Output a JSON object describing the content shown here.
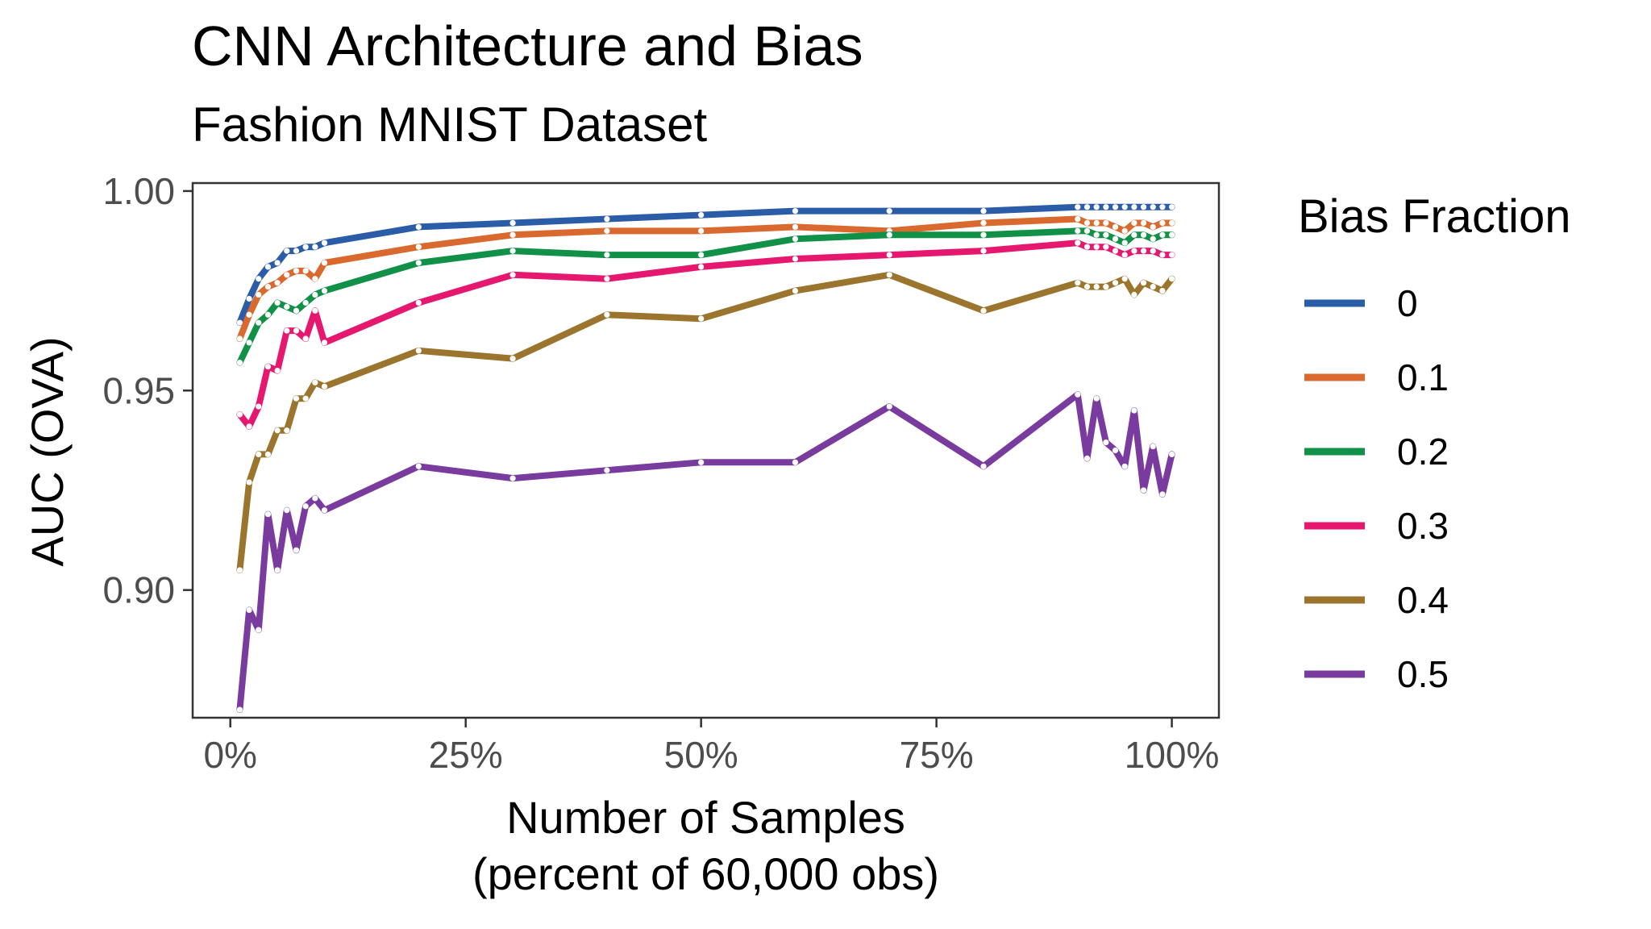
{
  "chart_data": {
    "type": "line",
    "title": "CNN Architecture and Bias",
    "subtitle": "Fashion MNIST Dataset",
    "xlabel": [
      "Number of Samples",
      "(percent of 60,000 obs)"
    ],
    "ylabel": "AUC (OVA)",
    "xlim": [
      -0.04,
      1.05
    ],
    "ylim": [
      0.868,
      1.002
    ],
    "x_ticks": [
      0,
      0.25,
      0.5,
      0.75,
      1.0
    ],
    "x_tick_labels": [
      "0%",
      "25%",
      "50%",
      "75%",
      "100%"
    ],
    "y_ticks": [
      0.9,
      0.95,
      1.0
    ],
    "y_tick_labels": [
      "0.90",
      "0.95",
      "1.00"
    ],
    "legend_title": "Bias Fraction",
    "legend_position": "right",
    "x": [
      0.01,
      0.02,
      0.03,
      0.04,
      0.05,
      0.06,
      0.07,
      0.08,
      0.09,
      0.1,
      0.2,
      0.3,
      0.4,
      0.5,
      0.6,
      0.7,
      0.8,
      0.9,
      0.91,
      0.92,
      0.93,
      0.94,
      0.95,
      0.96,
      0.97,
      0.98,
      0.99,
      1.0
    ],
    "series": [
      {
        "name": "0",
        "color": "#2a5ca8",
        "values": [
          0.967,
          0.973,
          0.978,
          0.981,
          0.982,
          0.985,
          0.985,
          0.986,
          0.986,
          0.987,
          0.991,
          0.992,
          0.993,
          0.994,
          0.995,
          0.995,
          0.995,
          0.996,
          0.996,
          0.996,
          0.996,
          0.996,
          0.996,
          0.996,
          0.996,
          0.996,
          0.996,
          0.996
        ]
      },
      {
        "name": "0.1",
        "color": "#d9692e",
        "values": [
          0.963,
          0.969,
          0.974,
          0.976,
          0.977,
          0.979,
          0.98,
          0.98,
          0.978,
          0.982,
          0.986,
          0.989,
          0.99,
          0.99,
          0.991,
          0.99,
          0.992,
          0.993,
          0.992,
          0.992,
          0.992,
          0.991,
          0.99,
          0.992,
          0.992,
          0.991,
          0.992,
          0.992
        ]
      },
      {
        "name": "0.2",
        "color": "#119148",
        "values": [
          0.957,
          0.962,
          0.967,
          0.969,
          0.972,
          0.971,
          0.97,
          0.972,
          0.974,
          0.975,
          0.982,
          0.985,
          0.984,
          0.984,
          0.988,
          0.989,
          0.989,
          0.99,
          0.99,
          0.989,
          0.989,
          0.988,
          0.987,
          0.989,
          0.989,
          0.988,
          0.989,
          0.989
        ]
      },
      {
        "name": "0.3",
        "color": "#e5176f",
        "values": [
          0.944,
          0.941,
          0.946,
          0.956,
          0.955,
          0.965,
          0.965,
          0.963,
          0.97,
          0.962,
          0.972,
          0.979,
          0.978,
          0.981,
          0.983,
          0.984,
          0.985,
          0.987,
          0.986,
          0.986,
          0.986,
          0.985,
          0.984,
          0.985,
          0.985,
          0.985,
          0.984,
          0.984
        ]
      },
      {
        "name": "0.4",
        "color": "#9b752e",
        "values": [
          0.905,
          0.927,
          0.934,
          0.934,
          0.94,
          0.94,
          0.948,
          0.948,
          0.952,
          0.951,
          0.96,
          0.958,
          0.969,
          0.968,
          0.975,
          0.979,
          0.97,
          0.977,
          0.976,
          0.976,
          0.976,
          0.977,
          0.978,
          0.974,
          0.977,
          0.976,
          0.975,
          0.978
        ]
      },
      {
        "name": "0.5",
        "color": "#7a3b9e",
        "values": [
          0.87,
          0.895,
          0.89,
          0.919,
          0.905,
          0.92,
          0.91,
          0.921,
          0.923,
          0.92,
          0.931,
          0.928,
          0.93,
          0.932,
          0.932,
          0.946,
          0.931,
          0.949,
          0.933,
          0.948,
          0.937,
          0.935,
          0.931,
          0.945,
          0.925,
          0.936,
          0.924,
          0.934
        ]
      }
    ]
  }
}
